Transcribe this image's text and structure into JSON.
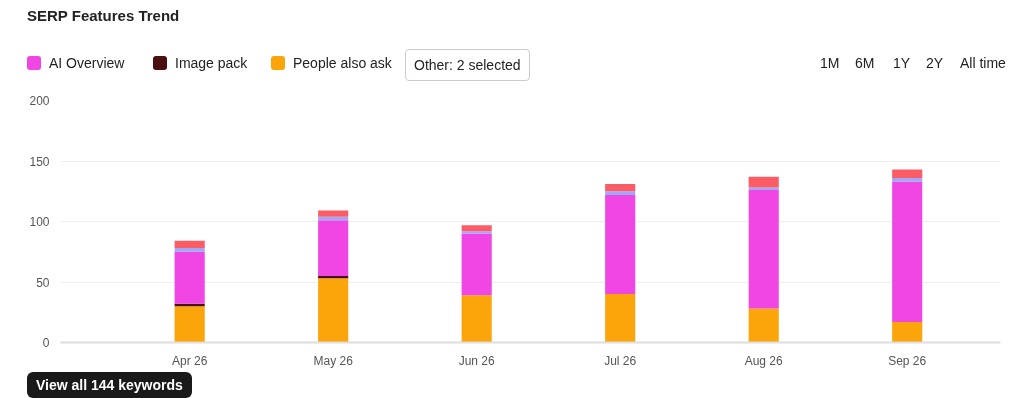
{
  "chart_data": {
    "type": "bar",
    "title": "SERP Features Trend",
    "stacked": true,
    "categories": [
      "Apr 26",
      "May 26",
      "Jun 26",
      "Jul 26",
      "Aug 26",
      "Sep 26"
    ],
    "series": [
      {
        "name": "People also ask",
        "color": "#fca50a",
        "values": [
          30,
          53,
          39,
          40,
          28,
          17
        ]
      },
      {
        "name": "Image pack",
        "color": "#4a1010",
        "values": [
          2,
          2,
          0,
          0,
          0,
          0
        ]
      },
      {
        "name": "AI Overview",
        "color": "#f046e4",
        "values": [
          43,
          46,
          51,
          82,
          98,
          116
        ]
      },
      {
        "color": "#a0a8f8",
        "values": [
          3,
          3,
          2,
          3,
          2,
          3
        ]
      },
      {
        "color": "#fc5c65",
        "values": [
          6,
          5,
          5,
          6,
          9,
          7
        ]
      }
    ],
    "ylim": [
      0,
      200
    ],
    "yticks": [
      0,
      50,
      100,
      150,
      200
    ],
    "grid": "y",
    "legend": "top left",
    "annotations": [
      "Other: 2 selected",
      "1M",
      "6M",
      "1Y",
      "2Y",
      "All time",
      "View all 144 keywords"
    ]
  }
}
